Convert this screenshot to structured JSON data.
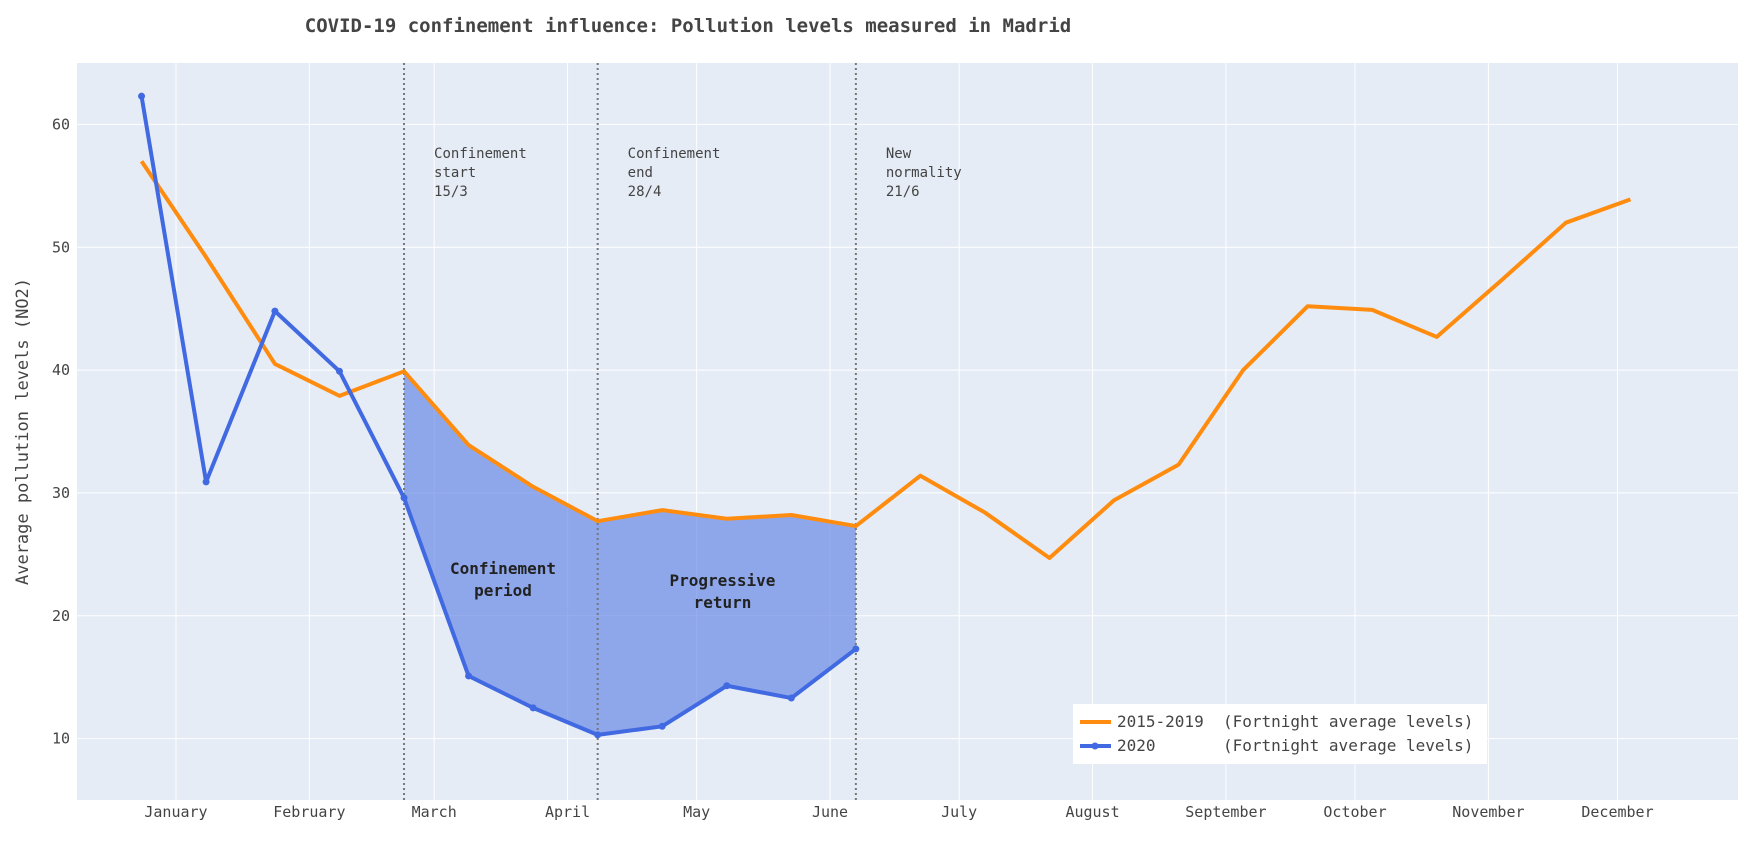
{
  "chart_data": {
    "type": "line",
    "title": "COVID-19 confinement influence: Pollution levels measured in Madrid",
    "xlabel": "",
    "ylabel": "Average pollution levels (NO2)",
    "ylim": [
      5,
      65
    ],
    "yticks": [
      10,
      20,
      30,
      40,
      50,
      60
    ],
    "x_axis": {
      "type": "date",
      "range": [
        "2019-12-09",
        "2020-12-29"
      ],
      "tick_dates": [
        "2020-01-01",
        "2020-02-01",
        "2020-03-01",
        "2020-04-01",
        "2020-05-01",
        "2020-06-01",
        "2020-07-01",
        "2020-08-01",
        "2020-09-01",
        "2020-10-01",
        "2020-11-01",
        "2020-12-01"
      ],
      "tick_labels": [
        "January",
        "February",
        "March",
        "April",
        "May",
        "June",
        "July",
        "August",
        "September",
        "October",
        "November",
        "December"
      ]
    },
    "grid": true,
    "legend_position": "bottom-right",
    "series": [
      {
        "name": "2015-2019  (Fortnight average levels)",
        "color": "#FF8C0F",
        "markers": false,
        "points": [
          [
            "2019-12-24",
            57.0
          ],
          [
            "2020-01-08",
            49.2
          ],
          [
            "2020-01-24",
            40.5
          ],
          [
            "2020-02-08",
            37.9
          ],
          [
            "2020-02-23",
            39.9
          ],
          [
            "2020-03-09",
            33.9
          ],
          [
            "2020-03-24",
            30.5
          ],
          [
            "2020-04-08",
            27.7
          ],
          [
            "2020-04-23",
            28.6
          ],
          [
            "2020-05-08",
            27.9
          ],
          [
            "2020-05-23",
            28.2
          ],
          [
            "2020-06-07",
            27.3
          ],
          [
            "2020-06-22",
            31.4
          ],
          [
            "2020-07-07",
            28.4
          ],
          [
            "2020-07-22",
            24.7
          ],
          [
            "2020-08-06",
            29.4
          ],
          [
            "2020-08-21",
            32.3
          ],
          [
            "2020-09-05",
            40.0
          ],
          [
            "2020-09-20",
            45.2
          ],
          [
            "2020-10-05",
            44.9
          ],
          [
            "2020-10-20",
            42.7
          ],
          [
            "2020-11-04",
            47.3
          ],
          [
            "2020-11-19",
            52.0
          ],
          [
            "2020-12-04",
            53.9
          ]
        ]
      },
      {
        "name": "2020       (Fortnight average levels)",
        "color": "#4169E1",
        "markers": true,
        "points": [
          [
            "2019-12-24",
            62.3
          ],
          [
            "2020-01-08",
            30.9
          ],
          [
            "2020-01-24",
            44.8
          ],
          [
            "2020-02-08",
            39.9
          ],
          [
            "2020-02-23",
            29.6
          ],
          [
            "2020-03-09",
            15.1
          ],
          [
            "2020-03-24",
            12.5
          ],
          [
            "2020-04-08",
            10.3
          ],
          [
            "2020-04-23",
            11.0
          ],
          [
            "2020-05-08",
            14.3
          ],
          [
            "2020-05-23",
            13.3
          ],
          [
            "2020-06-07",
            17.3
          ]
        ]
      }
    ],
    "fill_between": {
      "from": "2020-02-23",
      "to": "2020-06-07",
      "color": "#6A8AE6",
      "opacity": 0.7
    },
    "vlines": [
      {
        "date": "2020-02-23",
        "label": [
          "Confinement",
          "start",
          "15/3"
        ]
      },
      {
        "date": "2020-04-08",
        "label": [
          "Confinement",
          "end",
          "28/4"
        ]
      },
      {
        "date": "2020-06-07",
        "label": [
          "New",
          "normality",
          "21/6"
        ]
      }
    ],
    "regions": [
      {
        "label": [
          "Confinement",
          "period"
        ],
        "date": "2020-03-17",
        "y": 23.0
      },
      {
        "label": [
          "Progressive",
          "return"
        ],
        "date": "2020-05-07",
        "y": 22.0
      }
    ]
  },
  "colors": {
    "plot_bg": "#E5ECF6",
    "grid": "#FFFFFF",
    "vline": "#777777"
  }
}
